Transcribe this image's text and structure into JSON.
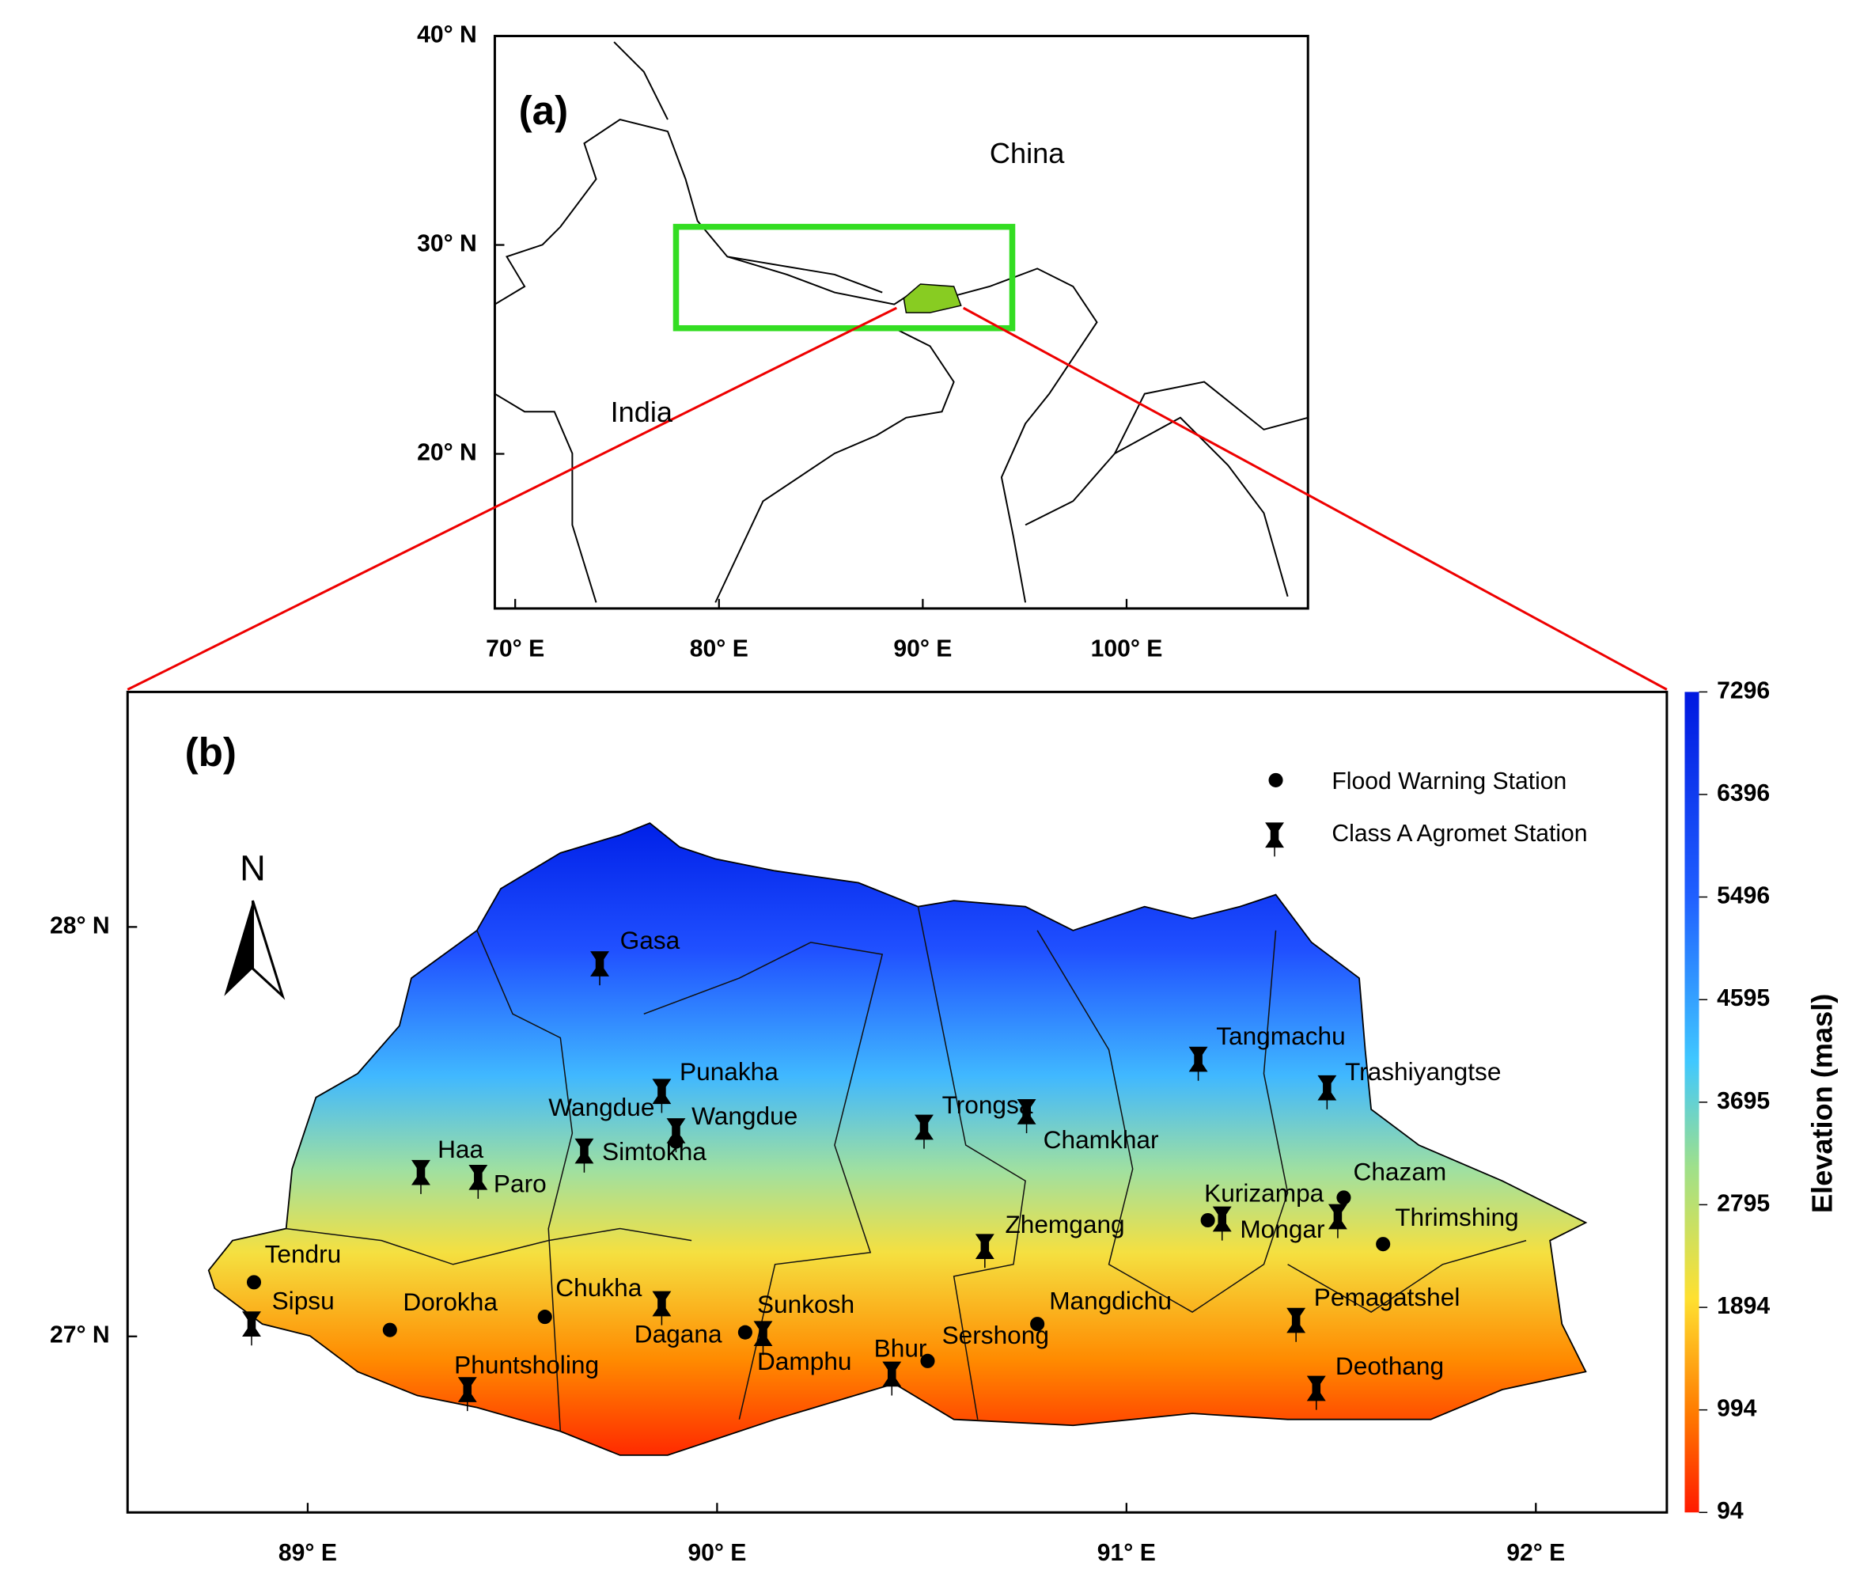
{
  "panel_a": {
    "title": "(a)",
    "labels": [
      "China",
      "India"
    ],
    "xlim": [
      69,
      108.9
    ],
    "ylim": [
      12.6,
      40
    ],
    "xticks": [
      {
        "value": 70,
        "label": "70° E"
      },
      {
        "value": 80,
        "label": "80° E"
      },
      {
        "value": 90,
        "label": "90° E"
      },
      {
        "value": 100,
        "label": "100° E"
      }
    ],
    "yticks": [
      {
        "value": 40,
        "label": "40° N"
      },
      {
        "value": 30,
        "label": "30° N"
      },
      {
        "value": 20,
        "label": "20° N"
      }
    ]
  },
  "panel_b": {
    "title": "(b)",
    "north": "N",
    "xlim": [
      88.56,
      92.32
    ],
    "ylim": [
      26.57,
      28.574
    ],
    "xticks": [
      {
        "value": 89,
        "label": "89° E"
      },
      {
        "value": 90,
        "label": "90° E"
      },
      {
        "value": 91,
        "label": "91° E"
      },
      {
        "value": 92,
        "label": "92° E"
      }
    ],
    "yticks": [
      {
        "value": 28,
        "label": "28° N"
      },
      {
        "value": 27,
        "label": "27° N"
      }
    ],
    "legend": [
      "Flood Warning Station",
      "Class A Agromet Station"
    ],
    "stations": [
      {
        "name": "Gasa"
      },
      {
        "name": "Punakha"
      },
      {
        "name": "Wangdue"
      },
      {
        "name": "Wangdue"
      },
      {
        "name": "Simtokha"
      },
      {
        "name": "Haa"
      },
      {
        "name": "Paro"
      },
      {
        "name": "Tendru"
      },
      {
        "name": "Sipsu"
      },
      {
        "name": "Dorokha"
      },
      {
        "name": "Chukha"
      },
      {
        "name": "Phuntsholing"
      },
      {
        "name": "Dagana"
      },
      {
        "name": "Sunkosh"
      },
      {
        "name": "Damphu"
      },
      {
        "name": "Bhur"
      },
      {
        "name": "Sershong"
      },
      {
        "name": "Trongsa"
      },
      {
        "name": "Chamkhar"
      },
      {
        "name": "Zhemgang"
      },
      {
        "name": "Mangdichu"
      },
      {
        "name": "Tangmachu"
      },
      {
        "name": "Trashiyangtse"
      },
      {
        "name": "Kurizampa"
      },
      {
        "name": "Mongar"
      },
      {
        "name": "Chazam"
      },
      {
        "name": "Thrimshing"
      },
      {
        "name": "Pemagatshel"
      },
      {
        "name": "Deothang"
      }
    ],
    "colorbar": {
      "label": "Elevation (masl)",
      "lim": [
        94,
        7296
      ],
      "ticks": [
        7296,
        6396,
        5496,
        4595,
        3695,
        2795,
        1894,
        994,
        94
      ]
    }
  }
}
